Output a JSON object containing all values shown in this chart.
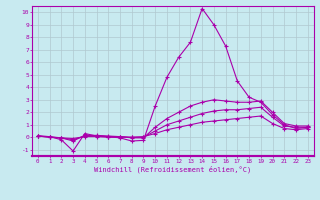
{
  "background_color": "#c8eaf0",
  "grid_color": "#b0c8d0",
  "line_color": "#aa00aa",
  "xlabel": "Windchill (Refroidissement éolien,°C)",
  "xlim": [
    -0.5,
    23.5
  ],
  "ylim": [
    -1.5,
    10.5
  ],
  "xticks": [
    0,
    1,
    2,
    3,
    4,
    5,
    6,
    7,
    8,
    9,
    10,
    11,
    12,
    13,
    14,
    15,
    16,
    17,
    18,
    19,
    20,
    21,
    22,
    23
  ],
  "yticks": [
    -1,
    0,
    1,
    2,
    3,
    4,
    5,
    6,
    7,
    8,
    9,
    10
  ],
  "series": [
    [
      0.1,
      0.05,
      -0.2,
      -1.1,
      0.3,
      0.1,
      0.05,
      -0.05,
      -0.3,
      -0.25,
      2.5,
      4.8,
      6.4,
      7.6,
      10.3,
      9.0,
      7.3,
      4.5,
      3.2,
      2.8,
      1.8,
      1.0,
      0.7,
      0.8
    ],
    [
      0.1,
      0.05,
      -0.05,
      -0.3,
      0.15,
      0.15,
      0.1,
      0.05,
      -0.05,
      -0.05,
      0.8,
      1.5,
      2.0,
      2.5,
      2.8,
      3.0,
      2.9,
      2.8,
      2.8,
      2.9,
      2.0,
      1.1,
      0.9,
      0.9
    ],
    [
      0.1,
      0.0,
      -0.05,
      -0.2,
      0.1,
      0.1,
      0.05,
      0.05,
      0.0,
      0.0,
      0.5,
      1.0,
      1.3,
      1.6,
      1.9,
      2.1,
      2.2,
      2.2,
      2.3,
      2.4,
      1.6,
      0.9,
      0.8,
      0.8
    ],
    [
      0.1,
      0.0,
      -0.05,
      -0.1,
      0.05,
      0.05,
      0.0,
      0.0,
      0.0,
      0.05,
      0.3,
      0.6,
      0.8,
      1.0,
      1.2,
      1.3,
      1.4,
      1.5,
      1.6,
      1.7,
      1.1,
      0.7,
      0.6,
      0.7
    ]
  ]
}
